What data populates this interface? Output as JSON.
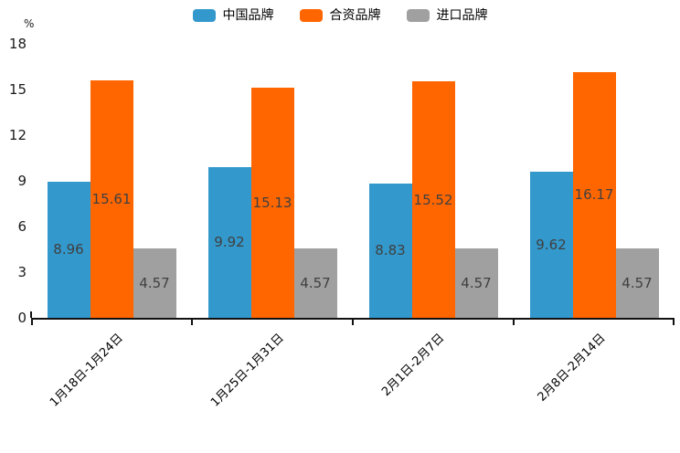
{
  "chart_data": {
    "type": "bar",
    "title": "",
    "unit_label": "%",
    "categories": [
      "1月18日-1月24日",
      "1月25日-1月31日",
      "2月1日-2月7日",
      "2月8日-2月14日"
    ],
    "series": [
      {
        "name": "中国品牌",
        "color": "#3398cc",
        "values": [
          8.96,
          9.92,
          8.83,
          9.62
        ]
      },
      {
        "name": "合资品牌",
        "color": "#ff6600",
        "values": [
          15.61,
          15.13,
          15.52,
          16.17
        ]
      },
      {
        "name": "进口品牌",
        "color": "#a0a0a0",
        "values": [
          4.57,
          4.57,
          4.57,
          4.57
        ]
      }
    ],
    "ylim": [
      0,
      18
    ],
    "yticks": [
      0,
      3,
      6,
      9,
      12,
      15,
      18
    ],
    "grid": false,
    "legend_position": "top",
    "value_labels": "inside-middle",
    "axis_color": "#111111",
    "value_label_color": "#404040",
    "tick_label_color": "#1a1a1a"
  }
}
